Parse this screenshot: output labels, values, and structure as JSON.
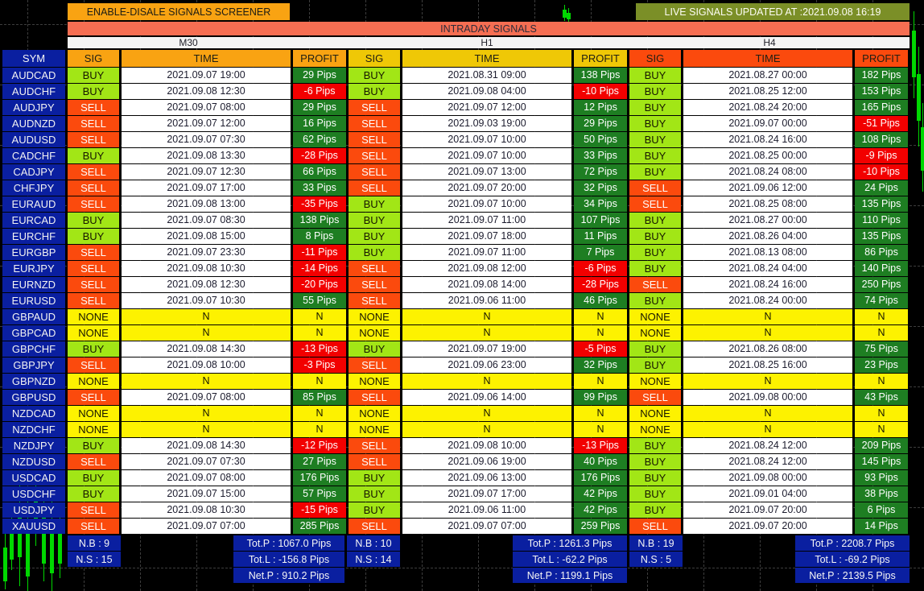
{
  "colors": {
    "background": "#000000",
    "navy": "#0a1fa0",
    "buy": "#a2e616",
    "sell": "#fb4a0d",
    "none": "#fdf200",
    "profit_pos": "#1e7e22",
    "profit_neg": "#f20000",
    "m30_header": "#f9a312",
    "h1_header": "#efc806",
    "h4_header": "#fb4a0d",
    "title_bar": "#f66e52",
    "tf_bar": "#f4f4f4",
    "enable_button": "#f9a312",
    "live_button": "#7b8f27",
    "time_text": "#1c1c2e",
    "grid_line": "#7a7a7a",
    "candle": "#00d800"
  },
  "header": {
    "enable_button": "ENABLE-DISALE SIGNALS SCREENER",
    "live_update": "LIVE SIGNALS UPDATED AT  :2021.09.08 16:19",
    "table_title": "INTRADAY SIGNALS",
    "timeframes": {
      "m30": "M30",
      "h1": "H1",
      "h4": "H4"
    },
    "sym": "SYM",
    "sig": "SIG",
    "time": "TIME",
    "profit": "PROFIT"
  },
  "rows": [
    {
      "sym": "AUDCAD",
      "m30": {
        "sig": "BUY",
        "time": "2021.09.07 19:00",
        "profit": "29 Pips"
      },
      "h1": {
        "sig": "BUY",
        "time": "2021.08.31 09:00",
        "profit": "138 Pips"
      },
      "h4": {
        "sig": "BUY",
        "time": "2021.08.27 00:00",
        "profit": "182 Pips"
      }
    },
    {
      "sym": "AUDCHF",
      "m30": {
        "sig": "BUY",
        "time": "2021.09.08 12:30",
        "profit": "-6 Pips"
      },
      "h1": {
        "sig": "BUY",
        "time": "2021.09.08 04:00",
        "profit": "-10 Pips"
      },
      "h4": {
        "sig": "BUY",
        "time": "2021.08.25 12:00",
        "profit": "153 Pips"
      }
    },
    {
      "sym": "AUDJPY",
      "m30": {
        "sig": "SELL",
        "time": "2021.09.07 08:00",
        "profit": "29 Pips"
      },
      "h1": {
        "sig": "SELL",
        "time": "2021.09.07 12:00",
        "profit": "12 Pips"
      },
      "h4": {
        "sig": "BUY",
        "time": "2021.08.24 20:00",
        "profit": "165 Pips"
      }
    },
    {
      "sym": "AUDNZD",
      "m30": {
        "sig": "SELL",
        "time": "2021.09.07 12:00",
        "profit": "16 Pips"
      },
      "h1": {
        "sig": "SELL",
        "time": "2021.09.03 19:00",
        "profit": "29 Pips"
      },
      "h4": {
        "sig": "BUY",
        "time": "2021.09.07 00:00",
        "profit": "-51 Pips"
      }
    },
    {
      "sym": "AUDUSD",
      "m30": {
        "sig": "SELL",
        "time": "2021.09.07 07:30",
        "profit": "62 Pips"
      },
      "h1": {
        "sig": "SELL",
        "time": "2021.09.07 10:00",
        "profit": "50 Pips"
      },
      "h4": {
        "sig": "BUY",
        "time": "2021.08.24 16:00",
        "profit": "108 Pips"
      }
    },
    {
      "sym": "CADCHF",
      "m30": {
        "sig": "BUY",
        "time": "2021.09.08 13:30",
        "profit": "-28 Pips"
      },
      "h1": {
        "sig": "SELL",
        "time": "2021.09.07 10:00",
        "profit": "33 Pips"
      },
      "h4": {
        "sig": "BUY",
        "time": "2021.08.25 00:00",
        "profit": "-9 Pips"
      }
    },
    {
      "sym": "CADJPY",
      "m30": {
        "sig": "SELL",
        "time": "2021.09.07 12:30",
        "profit": "66 Pips"
      },
      "h1": {
        "sig": "SELL",
        "time": "2021.09.07 13:00",
        "profit": "72 Pips"
      },
      "h4": {
        "sig": "BUY",
        "time": "2021.08.24 08:00",
        "profit": "-10 Pips"
      }
    },
    {
      "sym": "CHFJPY",
      "m30": {
        "sig": "SELL",
        "time": "2021.09.07 17:00",
        "profit": "33 Pips"
      },
      "h1": {
        "sig": "SELL",
        "time": "2021.09.07 20:00",
        "profit": "32 Pips"
      },
      "h4": {
        "sig": "SELL",
        "time": "2021.09.06 12:00",
        "profit": "24 Pips"
      }
    },
    {
      "sym": "EURAUD",
      "m30": {
        "sig": "SELL",
        "time": "2021.09.08 13:00",
        "profit": "-35 Pips"
      },
      "h1": {
        "sig": "BUY",
        "time": "2021.09.07 10:00",
        "profit": "34 Pips"
      },
      "h4": {
        "sig": "SELL",
        "time": "2021.08.25 08:00",
        "profit": "135 Pips"
      }
    },
    {
      "sym": "EURCAD",
      "m30": {
        "sig": "BUY",
        "time": "2021.09.07 08:30",
        "profit": "138 Pips"
      },
      "h1": {
        "sig": "BUY",
        "time": "2021.09.07 11:00",
        "profit": "107 Pips"
      },
      "h4": {
        "sig": "BUY",
        "time": "2021.08.27 00:00",
        "profit": "110 Pips"
      }
    },
    {
      "sym": "EURCHF",
      "m30": {
        "sig": "BUY",
        "time": "2021.09.08 15:00",
        "profit": "8 Pips"
      },
      "h1": {
        "sig": "BUY",
        "time": "2021.09.07 18:00",
        "profit": "11 Pips"
      },
      "h4": {
        "sig": "BUY",
        "time": "2021.08.26 04:00",
        "profit": "135 Pips"
      }
    },
    {
      "sym": "EURGBP",
      "m30": {
        "sig": "SELL",
        "time": "2021.09.07 23:30",
        "profit": "-11 Pips"
      },
      "h1": {
        "sig": "BUY",
        "time": "2021.09.07 11:00",
        "profit": "7 Pips"
      },
      "h4": {
        "sig": "BUY",
        "time": "2021.08.13 08:00",
        "profit": "86 Pips"
      }
    },
    {
      "sym": "EURJPY",
      "m30": {
        "sig": "SELL",
        "time": "2021.09.08 10:30",
        "profit": "-14 Pips"
      },
      "h1": {
        "sig": "SELL",
        "time": "2021.09.08 12:00",
        "profit": "-6 Pips"
      },
      "h4": {
        "sig": "BUY",
        "time": "2021.08.24 04:00",
        "profit": "140 Pips"
      }
    },
    {
      "sym": "EURNZD",
      "m30": {
        "sig": "SELL",
        "time": "2021.09.08 12:30",
        "profit": "-20 Pips"
      },
      "h1": {
        "sig": "SELL",
        "time": "2021.09.08 14:00",
        "profit": "-28 Pips"
      },
      "h4": {
        "sig": "SELL",
        "time": "2021.08.24 16:00",
        "profit": "250 Pips"
      }
    },
    {
      "sym": "EURUSD",
      "m30": {
        "sig": "SELL",
        "time": "2021.09.07 10:30",
        "profit": "55 Pips"
      },
      "h1": {
        "sig": "SELL",
        "time": "2021.09.06 11:00",
        "profit": "46 Pips"
      },
      "h4": {
        "sig": "BUY",
        "time": "2021.08.24 00:00",
        "profit": "74 Pips"
      }
    },
    {
      "sym": "GBPAUD",
      "m30": {
        "sig": "NONE",
        "time": "N",
        "profit": "N"
      },
      "h1": {
        "sig": "NONE",
        "time": "N",
        "profit": "N"
      },
      "h4": {
        "sig": "NONE",
        "time": "N",
        "profit": "N"
      }
    },
    {
      "sym": "GBPCAD",
      "m30": {
        "sig": "NONE",
        "time": "N",
        "profit": "N"
      },
      "h1": {
        "sig": "NONE",
        "time": "N",
        "profit": "N"
      },
      "h4": {
        "sig": "NONE",
        "time": "N",
        "profit": "N"
      }
    },
    {
      "sym": "GBPCHF",
      "m30": {
        "sig": "BUY",
        "time": "2021.09.08 14:30",
        "profit": "-13 Pips"
      },
      "h1": {
        "sig": "BUY",
        "time": "2021.09.07 19:00",
        "profit": "-5 Pips"
      },
      "h4": {
        "sig": "BUY",
        "time": "2021.08.26 08:00",
        "profit": "75 Pips"
      }
    },
    {
      "sym": "GBPJPY",
      "m30": {
        "sig": "SELL",
        "time": "2021.09.08 10:00",
        "profit": "-3 Pips"
      },
      "h1": {
        "sig": "SELL",
        "time": "2021.09.06 23:00",
        "profit": "32 Pips"
      },
      "h4": {
        "sig": "BUY",
        "time": "2021.08.25 16:00",
        "profit": "23 Pips"
      }
    },
    {
      "sym": "GBPNZD",
      "m30": {
        "sig": "NONE",
        "time": "N",
        "profit": "N"
      },
      "h1": {
        "sig": "NONE",
        "time": "N",
        "profit": "N"
      },
      "h4": {
        "sig": "NONE",
        "time": "N",
        "profit": "N"
      }
    },
    {
      "sym": "GBPUSD",
      "m30": {
        "sig": "SELL",
        "time": "2021.09.07 08:00",
        "profit": "85 Pips"
      },
      "h1": {
        "sig": "SELL",
        "time": "2021.09.06 14:00",
        "profit": "99 Pips"
      },
      "h4": {
        "sig": "SELL",
        "time": "2021.09.08 00:00",
        "profit": "43 Pips"
      }
    },
    {
      "sym": "NZDCAD",
      "m30": {
        "sig": "NONE",
        "time": "N",
        "profit": "N"
      },
      "h1": {
        "sig": "NONE",
        "time": "N",
        "profit": "N"
      },
      "h4": {
        "sig": "NONE",
        "time": "N",
        "profit": "N"
      }
    },
    {
      "sym": "NZDCHF",
      "m30": {
        "sig": "NONE",
        "time": "N",
        "profit": "N"
      },
      "h1": {
        "sig": "NONE",
        "time": "N",
        "profit": "N"
      },
      "h4": {
        "sig": "NONE",
        "time": "N",
        "profit": "N"
      }
    },
    {
      "sym": "NZDJPY",
      "m30": {
        "sig": "BUY",
        "time": "2021.09.08 14:30",
        "profit": "-12 Pips"
      },
      "h1": {
        "sig": "SELL",
        "time": "2021.09.08 10:00",
        "profit": "-13 Pips"
      },
      "h4": {
        "sig": "BUY",
        "time": "2021.08.24 12:00",
        "profit": "209 Pips"
      }
    },
    {
      "sym": "NZDUSD",
      "m30": {
        "sig": "SELL",
        "time": "2021.09.07 07:30",
        "profit": "27 Pips"
      },
      "h1": {
        "sig": "SELL",
        "time": "2021.09.06 19:00",
        "profit": "40 Pips"
      },
      "h4": {
        "sig": "BUY",
        "time": "2021.08.24 12:00",
        "profit": "145 Pips"
      }
    },
    {
      "sym": "USDCAD",
      "m30": {
        "sig": "BUY",
        "time": "2021.09.07 08:00",
        "profit": "176 Pips"
      },
      "h1": {
        "sig": "BUY",
        "time": "2021.09.06 13:00",
        "profit": "176 Pips"
      },
      "h4": {
        "sig": "BUY",
        "time": "2021.09.08 00:00",
        "profit": "93 Pips"
      }
    },
    {
      "sym": "USDCHF",
      "m30": {
        "sig": "BUY",
        "time": "2021.09.07 15:00",
        "profit": "57 Pips"
      },
      "h1": {
        "sig": "BUY",
        "time": "2021.09.07 17:00",
        "profit": "42 Pips"
      },
      "h4": {
        "sig": "BUY",
        "time": "2021.09.01 04:00",
        "profit": "38 Pips"
      }
    },
    {
      "sym": "USDJPY",
      "m30": {
        "sig": "SELL",
        "time": "2021.09.08 10:30",
        "profit": "-15 Pips"
      },
      "h1": {
        "sig": "BUY",
        "time": "2021.09.06 11:00",
        "profit": "42 Pips"
      },
      "h4": {
        "sig": "BUY",
        "time": "2021.09.07 20:00",
        "profit": "6 Pips"
      }
    },
    {
      "sym": "XAUUSD",
      "m30": {
        "sig": "SELL",
        "time": "2021.09.07 07:00",
        "profit": "285 Pips"
      },
      "h1": {
        "sig": "SELL",
        "time": "2021.09.07 07:00",
        "profit": "259 Pips"
      },
      "h4": {
        "sig": "SELL",
        "time": "2021.09.07 20:00",
        "profit": "14 Pips"
      }
    }
  ],
  "summary": {
    "m30": {
      "nb": "N.B : 9",
      "ns": "N.S : 15",
      "totp": "Tot.P : 1067.0 Pips",
      "totl": "Tot.L : -156.8 Pips",
      "netp": "Net.P : 910.2 Pips"
    },
    "h1": {
      "nb": "N.B : 10",
      "ns": "N.S : 14",
      "totp": "Tot.P : 1261.3 Pips",
      "totl": "Tot.L : -62.2 Pips",
      "netp": "Net.P : 1199.1 Pips"
    },
    "h4": {
      "nb": "N.B : 19",
      "ns": "N.S : 5",
      "totp": "Tot.P : 2208.7 Pips",
      "totl": "Tot.L : -69.2 Pips",
      "netp": "Net.P : 2139.5 Pips"
    }
  }
}
